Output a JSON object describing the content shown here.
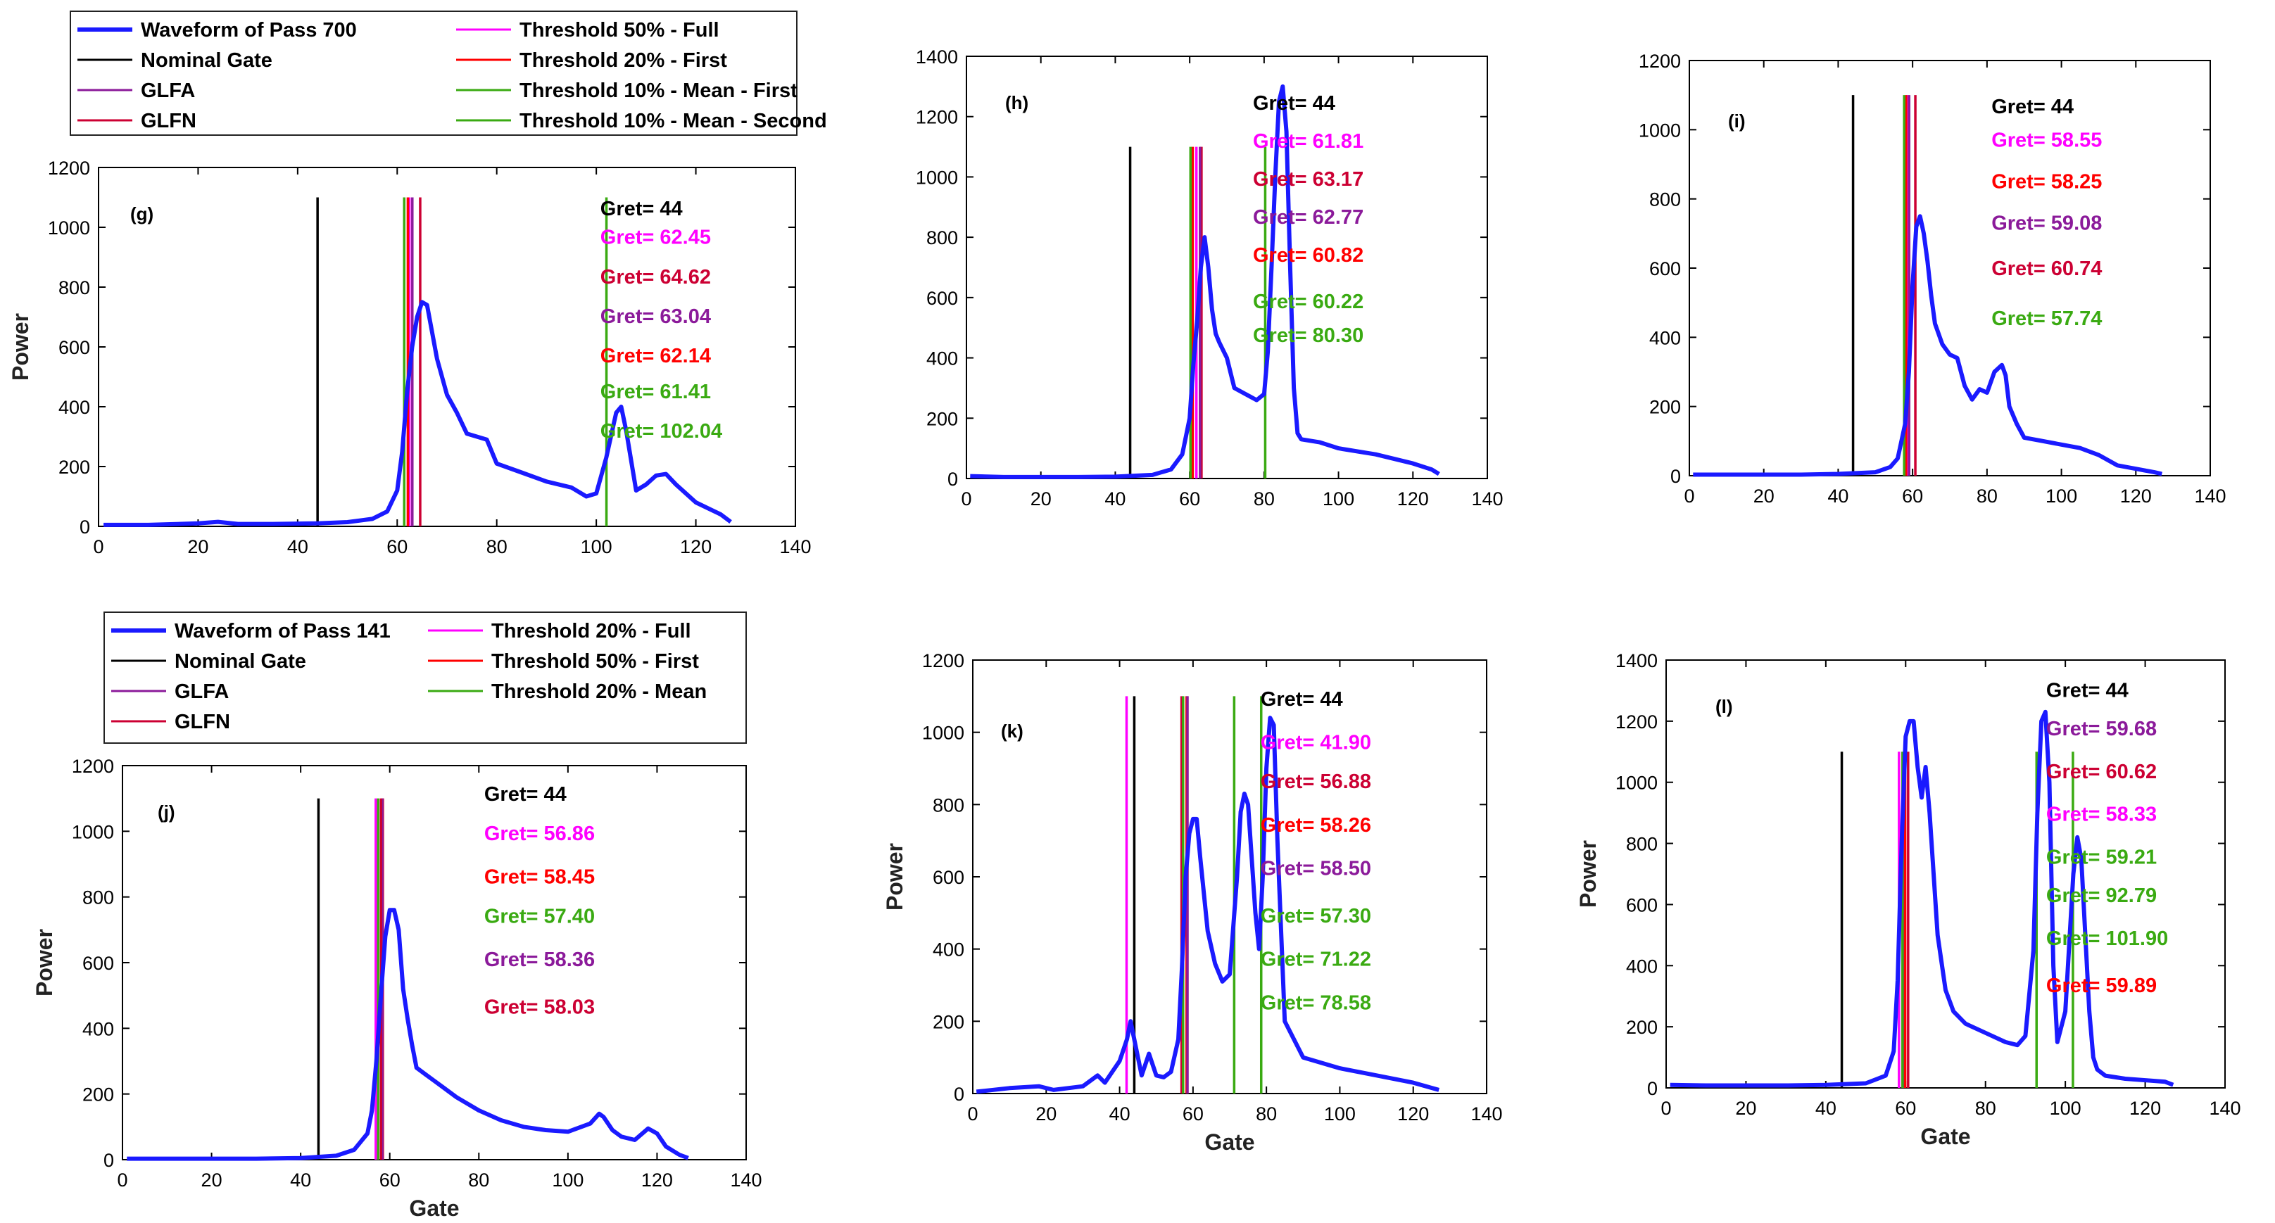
{
  "colors": {
    "waveform": "#1a1aff",
    "nominal": "#000000",
    "magenta": "#ff00ff",
    "red": "#ff0000",
    "crimson": "#cc0033",
    "purple": "#8b1a9a",
    "green": "#3aaa12"
  },
  "legends": [
    {
      "id": "pass700",
      "items": [
        {
          "label": "Waveform of Pass 700",
          "color": "#1a1aff",
          "thick": true
        },
        {
          "label": "Nominal Gate",
          "color": "#000000"
        },
        {
          "label": "GLFA",
          "color": "#8b1a9a"
        },
        {
          "label": "GLFN",
          "color": "#cc0033"
        },
        {
          "label": "Threshold 50% - Full",
          "color": "#ff00ff"
        },
        {
          "label": "Threshold 20% - First",
          "color": "#ff0000"
        },
        {
          "label": "Threshold 10% - Mean - First",
          "color": "#3aaa12"
        },
        {
          "label": "Threshold 10% - Mean - Second",
          "color": "#3aaa12"
        }
      ]
    },
    {
      "id": "pass141",
      "items": [
        {
          "label": "Waveform of Pass 141",
          "color": "#1a1aff",
          "thick": true
        },
        {
          "label": "Nominal Gate",
          "color": "#000000"
        },
        {
          "label": "GLFA",
          "color": "#8b1a9a"
        },
        {
          "label": "GLFN",
          "color": "#cc0033"
        },
        {
          "label": "Threshold 20% - Full",
          "color": "#ff00ff"
        },
        {
          "label": "Threshold 50% - First",
          "color": "#ff0000"
        },
        {
          "label": "Threshold 20% - Mean",
          "color": "#3aaa12"
        }
      ]
    }
  ],
  "chart_data": [
    {
      "id": "g",
      "type": "line",
      "panel_label": "(g)",
      "xlabel": "",
      "ylabel": "Power",
      "xlim": [
        0,
        140
      ],
      "ylim": [
        0,
        1200
      ],
      "xticks": [
        0,
        20,
        40,
        60,
        80,
        100,
        120,
        140
      ],
      "yticks": [
        0,
        200,
        400,
        600,
        800,
        1000,
        1200
      ],
      "waveform": {
        "x": [
          1,
          10,
          20,
          24,
          28,
          35,
          44,
          50,
          55,
          58,
          60,
          61,
          62,
          63,
          64,
          65,
          66,
          68,
          70,
          72,
          74,
          78,
          80,
          85,
          90,
          95,
          98,
          100,
          102,
          104,
          105,
          106,
          108,
          110,
          112,
          114,
          116,
          120,
          125,
          127
        ],
        "y": [
          5,
          5,
          10,
          15,
          8,
          8,
          10,
          14,
          25,
          50,
          120,
          250,
          450,
          600,
          700,
          750,
          740,
          560,
          440,
          380,
          310,
          290,
          210,
          180,
          150,
          130,
          100,
          110,
          230,
          380,
          400,
          320,
          120,
          140,
          170,
          175,
          140,
          80,
          40,
          15
        ]
      },
      "vlines": [
        {
          "x": 44,
          "color": "#000000"
        },
        {
          "x": 62.45,
          "color": "#ff00ff"
        },
        {
          "x": 64.62,
          "color": "#cc0033"
        },
        {
          "x": 63.04,
          "color": "#8b1a9a"
        },
        {
          "x": 62.14,
          "color": "#ff0000"
        },
        {
          "x": 61.41,
          "color": "#3aaa12"
        },
        {
          "x": 102.04,
          "color": "#3aaa12"
        }
      ],
      "vline_top": 1100,
      "annotations": [
        {
          "text": "Gret= 44",
          "color": "#000000"
        },
        {
          "text": "Gret= 62.45",
          "color": "#ff00ff"
        },
        {
          "text": "Gret= 64.62",
          "color": "#cc0033"
        },
        {
          "text": "Gret= 63.04",
          "color": "#8b1a9a"
        },
        {
          "text": "Gret= 62.14",
          "color": "#ff0000"
        },
        {
          "text": "Gret= 61.41",
          "color": "#3aaa12"
        },
        {
          "text": "Gret= 102.04",
          "color": "#3aaa12"
        }
      ]
    },
    {
      "id": "h",
      "type": "line",
      "panel_label": "(h)",
      "xlabel": "",
      "ylabel": "",
      "xlim": [
        0,
        140
      ],
      "ylim": [
        0,
        1400
      ],
      "xticks": [
        0,
        20,
        40,
        60,
        80,
        100,
        120,
        140
      ],
      "yticks": [
        0,
        200,
        400,
        600,
        800,
        1000,
        1200,
        1400
      ],
      "waveform": {
        "x": [
          1,
          10,
          20,
          30,
          40,
          50,
          55,
          58,
          60,
          61,
          62,
          63,
          64,
          65,
          66,
          67,
          68,
          70,
          72,
          75,
          78,
          80,
          81,
          82,
          83,
          84,
          85,
          86,
          87,
          88,
          89,
          90,
          95,
          100,
          110,
          120,
          125,
          127
        ],
        "y": [
          8,
          5,
          5,
          5,
          6,
          12,
          30,
          80,
          200,
          380,
          520,
          700,
          800,
          700,
          560,
          480,
          450,
          400,
          300,
          280,
          260,
          280,
          420,
          700,
          1000,
          1250,
          1300,
          1150,
          700,
          300,
          150,
          130,
          120,
          100,
          80,
          50,
          30,
          15
        ]
      },
      "vlines": [
        {
          "x": 44,
          "color": "#000000"
        },
        {
          "x": 61.81,
          "color": "#ff00ff"
        },
        {
          "x": 63.17,
          "color": "#cc0033"
        },
        {
          "x": 62.77,
          "color": "#8b1a9a"
        },
        {
          "x": 60.82,
          "color": "#ff0000"
        },
        {
          "x": 60.22,
          "color": "#3aaa12"
        },
        {
          "x": 80.3,
          "color": "#3aaa12"
        }
      ],
      "vline_top": 1100,
      "annotations": [
        {
          "text": "Gret= 44",
          "color": "#000000"
        },
        {
          "text": "Gret= 61.81",
          "color": "#ff00ff"
        },
        {
          "text": "Gret= 63.17",
          "color": "#cc0033"
        },
        {
          "text": "Gret= 62.77",
          "color": "#8b1a9a"
        },
        {
          "text": "Gret= 60.82",
          "color": "#ff0000"
        },
        {
          "text": "Gret= 60.22",
          "color": "#3aaa12"
        },
        {
          "text": "Gret= 80.30",
          "color": "#3aaa12"
        }
      ]
    },
    {
      "id": "i",
      "type": "line",
      "panel_label": "(i)",
      "xlabel": "",
      "ylabel": "",
      "xlim": [
        0,
        140
      ],
      "ylim": [
        0,
        1200
      ],
      "xticks": [
        0,
        20,
        40,
        60,
        80,
        100,
        120,
        140
      ],
      "yticks": [
        0,
        200,
        400,
        600,
        800,
        1000,
        1200
      ],
      "waveform": {
        "x": [
          1,
          10,
          20,
          30,
          40,
          50,
          54,
          56,
          58,
          59,
          60,
          61,
          62,
          63,
          64,
          65,
          66,
          68,
          70,
          72,
          74,
          76,
          78,
          80,
          82,
          84,
          85,
          86,
          88,
          90,
          95,
          100,
          105,
          110,
          115,
          120,
          125,
          127
        ],
        "y": [
          3,
          3,
          3,
          3,
          5,
          10,
          25,
          50,
          150,
          300,
          550,
          720,
          750,
          700,
          620,
          520,
          440,
          380,
          350,
          340,
          260,
          220,
          250,
          240,
          300,
          320,
          290,
          200,
          150,
          110,
          100,
          90,
          80,
          60,
          30,
          20,
          10,
          5
        ]
      },
      "vlines": [
        {
          "x": 44,
          "color": "#000000"
        },
        {
          "x": 58.55,
          "color": "#ff00ff"
        },
        {
          "x": 58.25,
          "color": "#ff0000"
        },
        {
          "x": 59.08,
          "color": "#8b1a9a"
        },
        {
          "x": 60.74,
          "color": "#cc0033"
        },
        {
          "x": 57.74,
          "color": "#3aaa12"
        }
      ],
      "vline_top": 1100,
      "annotations": [
        {
          "text": "Gret= 44",
          "color": "#000000"
        },
        {
          "text": "Gret= 58.55",
          "color": "#ff00ff"
        },
        {
          "text": "Gret= 58.25",
          "color": "#ff0000"
        },
        {
          "text": "Gret= 59.08",
          "color": "#8b1a9a"
        },
        {
          "text": "Gret= 60.74",
          "color": "#cc0033"
        },
        {
          "text": "Gret= 57.74",
          "color": "#3aaa12"
        }
      ]
    },
    {
      "id": "j",
      "type": "line",
      "panel_label": "(j)",
      "xlabel": "Gate",
      "ylabel": "Power",
      "xlim": [
        0,
        140
      ],
      "ylim": [
        0,
        1200
      ],
      "xticks": [
        0,
        20,
        40,
        60,
        80,
        100,
        120,
        140
      ],
      "yticks": [
        0,
        200,
        400,
        600,
        800,
        1000,
        1200
      ],
      "waveform": {
        "x": [
          1,
          10,
          20,
          30,
          40,
          48,
          52,
          55,
          56,
          57,
          58,
          59,
          60,
          61,
          62,
          63,
          64,
          65,
          66,
          68,
          70,
          72,
          75,
          80,
          85,
          90,
          95,
          100,
          105,
          107,
          108,
          110,
          112,
          115,
          118,
          120,
          122,
          125,
          127
        ],
        "y": [
          3,
          3,
          3,
          3,
          5,
          12,
          30,
          80,
          150,
          300,
          500,
          680,
          760,
          760,
          700,
          520,
          430,
          350,
          280,
          260,
          240,
          220,
          190,
          150,
          120,
          100,
          90,
          85,
          110,
          140,
          130,
          90,
          70,
          60,
          95,
          80,
          40,
          15,
          5
        ]
      },
      "vlines": [
        {
          "x": 44,
          "color": "#000000"
        },
        {
          "x": 56.86,
          "color": "#ff00ff"
        },
        {
          "x": 58.45,
          "color": "#ff0000"
        },
        {
          "x": 57.4,
          "color": "#3aaa12"
        },
        {
          "x": 58.36,
          "color": "#8b1a9a"
        },
        {
          "x": 58.03,
          "color": "#cc0033"
        }
      ],
      "vline_top": 1100,
      "annotations": [
        {
          "text": "Gret= 44",
          "color": "#000000"
        },
        {
          "text": "Gret= 56.86",
          "color": "#ff00ff"
        },
        {
          "text": "Gret= 58.45",
          "color": "#ff0000"
        },
        {
          "text": "Gret= 57.40",
          "color": "#3aaa12"
        },
        {
          "text": "Gret= 58.36",
          "color": "#8b1a9a"
        },
        {
          "text": "Gret= 58.03",
          "color": "#cc0033"
        }
      ]
    },
    {
      "id": "k",
      "type": "line",
      "panel_label": "(k)",
      "xlabel": "Gate",
      "ylabel": "Power",
      "xlim": [
        0,
        140
      ],
      "ylim": [
        0,
        1200
      ],
      "xticks": [
        0,
        20,
        40,
        60,
        80,
        100,
        120,
        140
      ],
      "yticks": [
        0,
        200,
        400,
        600,
        800,
        1000,
        1200
      ],
      "waveform": {
        "x": [
          1,
          10,
          18,
          22,
          30,
          34,
          36,
          38,
          40,
          42,
          43,
          44,
          46,
          48,
          50,
          52,
          54,
          56,
          57,
          58,
          59,
          60,
          61,
          62,
          64,
          66,
          68,
          70,
          72,
          73,
          74,
          75,
          76,
          77,
          78,
          79,
          80,
          81,
          82,
          83,
          85,
          90,
          100,
          110,
          120,
          127
        ],
        "y": [
          5,
          15,
          20,
          10,
          20,
          50,
          30,
          60,
          90,
          150,
          200,
          150,
          50,
          110,
          50,
          45,
          60,
          150,
          350,
          600,
          720,
          760,
          760,
          650,
          450,
          360,
          310,
          330,
          600,
          780,
          830,
          800,
          650,
          500,
          400,
          600,
          900,
          1040,
          1020,
          700,
          200,
          100,
          70,
          50,
          30,
          10
        ]
      },
      "vlines": [
        {
          "x": 41.9,
          "color": "#ff00ff"
        },
        {
          "x": 44,
          "color": "#000000"
        },
        {
          "x": 56.88,
          "color": "#cc0033"
        },
        {
          "x": 58.26,
          "color": "#ff0000"
        },
        {
          "x": 58.5,
          "color": "#8b1a9a"
        },
        {
          "x": 57.3,
          "color": "#3aaa12"
        },
        {
          "x": 71.22,
          "color": "#3aaa12"
        },
        {
          "x": 78.58,
          "color": "#3aaa12"
        }
      ],
      "vline_top": 1100,
      "annotations": [
        {
          "text": "Gret= 44",
          "color": "#000000"
        },
        {
          "text": "Gret= 41.90",
          "color": "#ff00ff"
        },
        {
          "text": "Gret= 56.88",
          "color": "#cc0033"
        },
        {
          "text": "Gret= 58.26",
          "color": "#ff0000"
        },
        {
          "text": "Gret= 58.50",
          "color": "#8b1a9a"
        },
        {
          "text": "Gret= 57.30",
          "color": "#3aaa12"
        },
        {
          "text": "Gret= 71.22",
          "color": "#3aaa12"
        },
        {
          "text": "Gret= 78.58",
          "color": "#3aaa12"
        }
      ]
    },
    {
      "id": "l",
      "type": "line",
      "panel_label": "(l)",
      "xlabel": "Gate",
      "ylabel": "Power",
      "xlim": [
        0,
        140
      ],
      "ylim": [
        0,
        1400
      ],
      "xticks": [
        0,
        20,
        40,
        60,
        80,
        100,
        120,
        140
      ],
      "yticks": [
        0,
        200,
        400,
        600,
        800,
        1000,
        1200,
        1400
      ],
      "waveform": {
        "x": [
          1,
          10,
          20,
          30,
          40,
          50,
          55,
          57,
          58,
          59,
          60,
          61,
          62,
          63,
          64,
          65,
          66,
          67,
          68,
          70,
          72,
          75,
          80,
          85,
          88,
          90,
          92,
          93,
          94,
          95,
          96,
          97,
          98,
          100,
          102,
          103,
          104,
          105,
          106,
          107,
          108,
          110,
          115,
          120,
          125,
          127
        ],
        "y": [
          10,
          8,
          8,
          8,
          10,
          15,
          40,
          120,
          350,
          800,
          1150,
          1200,
          1200,
          1050,
          950,
          1050,
          900,
          700,
          500,
          320,
          250,
          210,
          180,
          150,
          140,
          170,
          450,
          900,
          1200,
          1230,
          1000,
          400,
          150,
          250,
          700,
          820,
          750,
          500,
          250,
          100,
          60,
          40,
          30,
          25,
          20,
          10
        ]
      },
      "vlines": [
        {
          "x": 44,
          "color": "#000000"
        },
        {
          "x": 59.68,
          "color": "#8b1a9a"
        },
        {
          "x": 60.62,
          "color": "#cc0033"
        },
        {
          "x": 58.33,
          "color": "#ff00ff"
        },
        {
          "x": 59.21,
          "color": "#3aaa12"
        },
        {
          "x": 92.79,
          "color": "#3aaa12"
        },
        {
          "x": 101.9,
          "color": "#3aaa12"
        },
        {
          "x": 59.89,
          "color": "#ff0000"
        }
      ],
      "vline_top": 1100,
      "annotations": [
        {
          "text": "Gret= 44",
          "color": "#000000"
        },
        {
          "text": "Gret= 59.68",
          "color": "#8b1a9a"
        },
        {
          "text": "Gret= 60.62",
          "color": "#cc0033"
        },
        {
          "text": "Gret= 58.33",
          "color": "#ff00ff"
        },
        {
          "text": "Gret= 59.21",
          "color": "#3aaa12"
        },
        {
          "text": "Gret= 92.79",
          "color": "#3aaa12"
        },
        {
          "text": "Gret= 101.90",
          "color": "#3aaa12"
        },
        {
          "text": "Gret= 59.89",
          "color": "#ff0000"
        }
      ]
    }
  ]
}
